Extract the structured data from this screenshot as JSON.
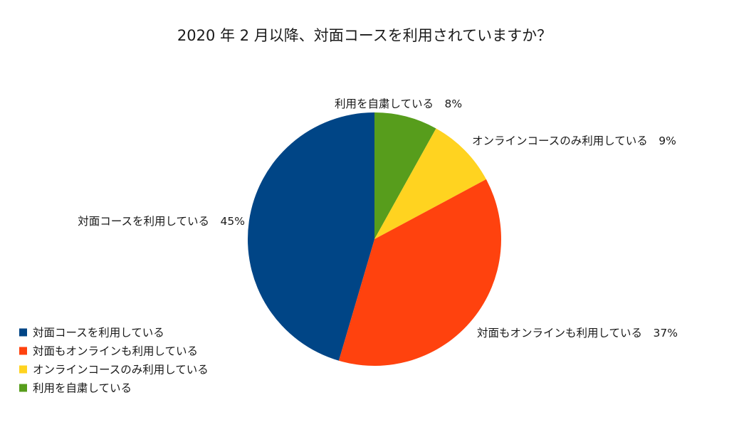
{
  "chart_data": {
    "type": "pie",
    "title": "2020 年 2 月以降、対面コースを利用されていますか？",
    "slices": [
      {
        "label": "対面コースを利用している",
        "value": 45,
        "value_label": "45%",
        "color": "#004586"
      },
      {
        "label": "対面もオンラインも利用している",
        "value": 37,
        "value_label": "37%",
        "color": "#ff420e"
      },
      {
        "label": "オンラインコースのみ利用している",
        "value": 9,
        "value_label": "9%",
        "color": "#ffd320"
      },
      {
        "label": "利用を自粛している",
        "value": 8,
        "value_label": "8%",
        "color": "#579d1c"
      }
    ],
    "start_angle_deg": 0,
    "direction": "clockwise_from_top_reversed_order",
    "legend": {
      "placement": "bottom-left",
      "items": [
        {
          "label": "対面コースを利用している",
          "color": "#004586"
        },
        {
          "label": "対面もオンラインも利用している",
          "color": "#ff420e"
        },
        {
          "label": "オンラインコースのみ利用している",
          "color": "#ffd320"
        },
        {
          "label": "利用を自粛している",
          "color": "#579d1c"
        }
      ]
    }
  }
}
